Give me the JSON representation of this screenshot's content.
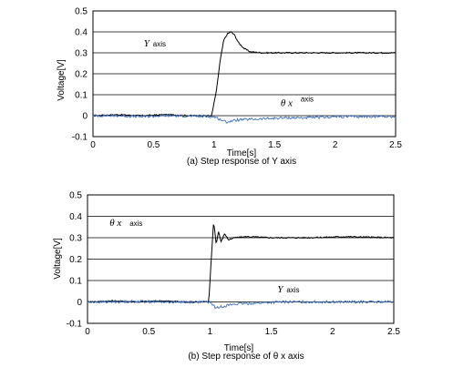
{
  "chart_data": [
    {
      "type": "line",
      "caption": "(a) Step response of Y axis",
      "xlabel": "Time[s]",
      "ylabel": "Voltage[V]",
      "xlim": [
        0,
        2.5
      ],
      "ylim": [
        -0.1,
        0.5
      ],
      "xticks": [
        "0",
        "0.5",
        "1",
        "1.5",
        "2",
        "2.5"
      ],
      "yticks": [
        "-0.1",
        "0",
        "0.1",
        "0.2",
        "0.3",
        "0.4",
        "0.5"
      ],
      "grid": "horizontal",
      "annotations": [
        {
          "text": "Y",
          "suffix": "axis",
          "x": 0.42,
          "y": 0.33,
          "superscript": false
        },
        {
          "text": "θ x",
          "suffix": "axis",
          "x": 1.55,
          "y": 0.045,
          "superscript": true
        }
      ],
      "series": [
        {
          "color": "#000000",
          "x": [
            0,
            0.2,
            0.4,
            0.6,
            0.8,
            0.98,
            1.02,
            1.05,
            1.08,
            1.11,
            1.14,
            1.17,
            1.2,
            1.25,
            1.3,
            1.4,
            1.5,
            1.7,
            2.0,
            2.3,
            2.5
          ],
          "y": [
            0.0,
            0.005,
            0.0,
            0.005,
            0.0,
            0.0,
            0.12,
            0.26,
            0.36,
            0.39,
            0.4,
            0.385,
            0.35,
            0.32,
            0.305,
            0.3,
            0.3,
            0.3,
            0.3,
            0.3,
            0.3
          ]
        },
        {
          "color": "#3a6fc4",
          "x": [
            0,
            0.2,
            0.4,
            0.6,
            0.8,
            1.0,
            1.1,
            1.2,
            1.4,
            1.6,
            1.8,
            2.0,
            2.2,
            2.4,
            2.5
          ],
          "y": [
            0.0,
            0.0,
            -0.005,
            0.0,
            -0.002,
            -0.005,
            -0.03,
            -0.02,
            -0.015,
            -0.01,
            -0.01,
            -0.005,
            -0.005,
            -0.003,
            -0.005
          ]
        }
      ]
    },
    {
      "type": "line",
      "caption": "(b) Step response of θ x axis",
      "xlabel": "Time[s]",
      "ylabel": "Voltage[V]",
      "xlim": [
        0,
        2.5
      ],
      "ylim": [
        -0.1,
        0.5
      ],
      "xticks": [
        "0",
        "0.5",
        "1",
        "1.5",
        "2",
        "2.5"
      ],
      "yticks": [
        "-0.1",
        "0",
        "0.1",
        "0.2",
        "0.3",
        "0.4",
        "0.5"
      ],
      "grid": "horizontal",
      "annotations": [
        {
          "text": "θ x",
          "suffix": "axis",
          "x": 0.18,
          "y": 0.355,
          "superscript": false
        },
        {
          "text": "Y",
          "suffix": "axis",
          "x": 1.55,
          "y": 0.045,
          "superscript": false
        }
      ],
      "series": [
        {
          "color": "#000000",
          "x": [
            0,
            0.2,
            0.4,
            0.6,
            0.8,
            0.99,
            1.01,
            1.03,
            1.05,
            1.07,
            1.09,
            1.12,
            1.15,
            1.2,
            1.3,
            1.5,
            1.8,
            2.1,
            2.5
          ],
          "y": [
            0.0,
            0.005,
            0.0,
            0.005,
            0.0,
            0.0,
            0.2,
            0.38,
            0.27,
            0.33,
            0.28,
            0.32,
            0.29,
            0.3,
            0.305,
            0.3,
            0.3,
            0.305,
            0.3
          ]
        },
        {
          "color": "#3a6fc4",
          "x": [
            0,
            0.2,
            0.4,
            0.6,
            0.8,
            1.0,
            1.05,
            1.1,
            1.2,
            1.4,
            1.6,
            1.8,
            2.0,
            2.2,
            2.5
          ],
          "y": [
            0.0,
            0.0,
            0.003,
            0.0,
            0.0,
            0.0,
            -0.03,
            -0.02,
            -0.01,
            -0.005,
            0.0,
            0.0,
            0.0,
            0.0,
            0.0
          ]
        }
      ]
    }
  ]
}
